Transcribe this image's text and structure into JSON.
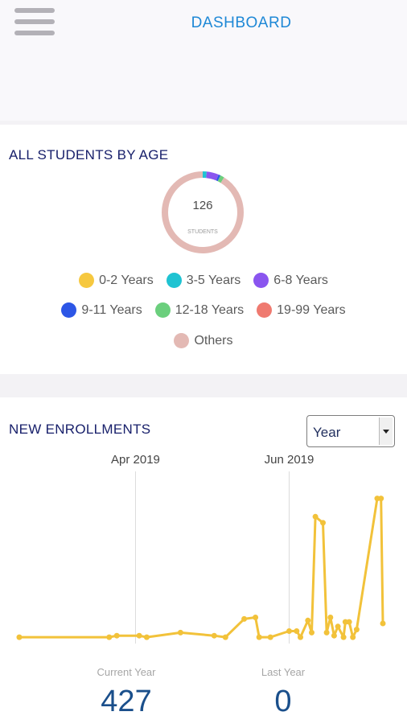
{
  "header": {
    "title": "DASHBOARD",
    "menu_icon": "hamburger-menu-icon"
  },
  "age_card": {
    "title": "ALL STUDENTS BY AGE",
    "total": "126",
    "total_unit": "STUDENTS",
    "segments": [
      {
        "label": "0-2 Years",
        "color": "#f6c83f",
        "value": 0
      },
      {
        "label": "3-5 Years",
        "color": "#1fc3d2",
        "value": 2
      },
      {
        "label": "6-8 Years",
        "color": "#8a55ef",
        "value": 6
      },
      {
        "label": "9-11 Years",
        "color": "#2c56e6",
        "value": 1
      },
      {
        "label": "12-18 Years",
        "color": "#6bcf7d",
        "value": 2
      },
      {
        "label": "19-99 Years",
        "color": "#ef7a70",
        "value": 0
      },
      {
        "label": "Others",
        "color": "#e3b9b4",
        "value": 115
      }
    ]
  },
  "enroll_card": {
    "title": "NEW ENROLLMENTS",
    "period": {
      "selected": "Year"
    },
    "line_color": "#f2c23a",
    "stats": {
      "current_label": "Current Year",
      "current_value": "427",
      "last_label": "Last Year",
      "last_value": "0"
    }
  },
  "chart_data": {
    "type": "line",
    "x_markers": [
      "Apr 2019",
      "Jun 2019"
    ],
    "series": [
      {
        "values": [
          [
            0.0,
            1
          ],
          [
            0.24,
            1
          ],
          [
            0.26,
            2
          ],
          [
            0.32,
            2
          ],
          [
            0.34,
            1
          ],
          [
            0.43,
            4
          ],
          [
            0.52,
            2
          ],
          [
            0.55,
            1
          ],
          [
            0.6,
            13
          ],
          [
            0.63,
            14
          ],
          [
            0.64,
            1
          ],
          [
            0.67,
            1
          ],
          [
            0.72,
            5
          ],
          [
            0.74,
            5
          ],
          [
            0.75,
            1
          ],
          [
            0.77,
            12
          ],
          [
            0.78,
            4
          ],
          [
            0.79,
            80
          ],
          [
            0.81,
            76
          ],
          [
            0.82,
            4
          ],
          [
            0.83,
            14
          ],
          [
            0.84,
            2
          ],
          [
            0.85,
            8
          ],
          [
            0.865,
            1
          ],
          [
            0.87,
            11
          ],
          [
            0.88,
            11
          ],
          [
            0.89,
            1
          ],
          [
            0.9,
            6
          ],
          [
            0.955,
            92
          ],
          [
            0.965,
            92
          ],
          [
            0.97,
            10
          ]
        ]
      }
    ]
  }
}
